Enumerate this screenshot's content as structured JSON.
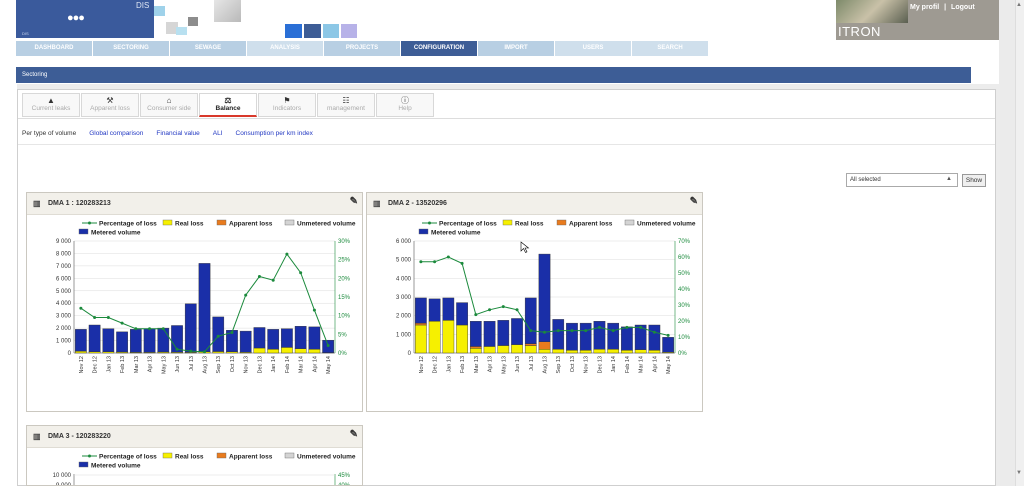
{
  "header": {
    "logo_text": "DIS",
    "logo_drops": "●●●",
    "logo_small": "DIS",
    "brand": "ITRON",
    "my_profil": "My profil",
    "separator": "|",
    "logout": "Logout"
  },
  "nav": [
    {
      "label": "DASHBOARD",
      "w": 76,
      "cls": ""
    },
    {
      "label": "SECTORING",
      "w": 76,
      "cls": ""
    },
    {
      "label": "SEWAGE",
      "w": 76,
      "cls": ""
    },
    {
      "label": "ANALYSIS",
      "w": 76,
      "cls": "light"
    },
    {
      "label": "PROJECTS",
      "w": 76,
      "cls": ""
    },
    {
      "label": "CONFIGURATION",
      "w": 76,
      "cls": "active"
    },
    {
      "label": "IMPORT",
      "w": 76,
      "cls": ""
    },
    {
      "label": "USERS",
      "w": 76,
      "cls": "light"
    },
    {
      "label": "SEARCH",
      "w": 76,
      "cls": "light"
    }
  ],
  "section_title": "Sectoring",
  "subtabs": [
    {
      "label": "Current leaks",
      "icon": "▲",
      "icon_name": "drop-icon",
      "active": false
    },
    {
      "label": "Apparent loss",
      "icon": "⚒",
      "icon_name": "hammer-icon",
      "active": false
    },
    {
      "label": "Consumer side",
      "icon": "⌂",
      "icon_name": "house-icon",
      "active": false
    },
    {
      "label": "Balance",
      "icon": "⚖",
      "icon_name": "balance-icon",
      "active": true
    },
    {
      "label": "Indicators",
      "icon": "⚑",
      "icon_name": "flag-icon",
      "active": false
    },
    {
      "label": "management",
      "icon": "☷",
      "icon_name": "hierarchy-icon",
      "active": false
    },
    {
      "label": "Help",
      "icon": "ⓘ",
      "icon_name": "help-icon",
      "active": false
    }
  ],
  "views": [
    {
      "label": "Per type of volume",
      "active": true
    },
    {
      "label": "Global comparison",
      "active": false
    },
    {
      "label": "Financial value",
      "active": false
    },
    {
      "label": "ALI",
      "active": false
    },
    {
      "label": "Consumption per km index",
      "active": false
    }
  ],
  "filter": {
    "value": "All selected",
    "arrow": "▲",
    "show_label": "Show"
  },
  "legend": {
    "pct": "Percentage of loss",
    "real": "Real loss",
    "apparent": "Apparent loss",
    "unmetered": "Unmetered volume",
    "metered": "Metered volume"
  },
  "colors": {
    "metered": "#1a2fa8",
    "real": "#f6f000",
    "apparent": "#e87b1e",
    "unmetered": "#d4d4d4",
    "pct_line": "#1b8a3c",
    "header": "#3d5d96"
  },
  "chart_data": [
    {
      "type": "bar",
      "title": "DMA 1 : 120283213",
      "categories": [
        "Nov 12",
        "Dec 12",
        "Jan 13",
        "Feb 13",
        "Mar 13",
        "Apr 13",
        "May 13",
        "Jun 13",
        "Jul 13",
        "Aug 13",
        "Sep 13",
        "Oct 13",
        "Nov 13",
        "Dec 13",
        "Jan 14",
        "Feb 14",
        "Mar 14",
        "Apr 14",
        "May 14"
      ],
      "ylim": [
        0,
        9000
      ],
      "yticks": [
        "0",
        "1 000",
        "2 000",
        "3 000",
        "4 000",
        "5 000",
        "6 000",
        "7 000",
        "8 000",
        "9 000"
      ],
      "y2lim": [
        0,
        30
      ],
      "y2ticks": [
        "0%",
        "5%",
        "10%",
        "15%",
        "20%",
        "25%",
        "30%"
      ],
      "series": [
        {
          "name": "Real loss",
          "values": [
            150,
            100,
            100,
            80,
            50,
            50,
            80,
            60,
            50,
            100,
            120,
            100,
            60,
            400,
            300,
            450,
            350,
            300,
            30
          ]
        },
        {
          "name": "Apparent loss",
          "values": [
            0,
            0,
            0,
            0,
            0,
            0,
            0,
            0,
            0,
            0,
            0,
            0,
            0,
            0,
            0,
            0,
            0,
            0,
            0
          ]
        },
        {
          "name": "Unmetered volume",
          "values": [
            0,
            0,
            0,
            0,
            0,
            0,
            0,
            0,
            0,
            0,
            0,
            0,
            0,
            0,
            0,
            0,
            0,
            0,
            0
          ]
        },
        {
          "name": "Metered volume",
          "values": [
            1750,
            2150,
            1850,
            1620,
            1850,
            1900,
            1920,
            2150,
            3900,
            7100,
            2780,
            1730,
            1700,
            1650,
            1600,
            1500,
            1800,
            1800,
            1000
          ]
        },
        {
          "name": "Percentage of loss",
          "values": [
            12,
            9.5,
            9.5,
            8,
            6.5,
            6.5,
            6.5,
            1,
            0.5,
            0.3,
            4.5,
            5.5,
            15.5,
            20.5,
            19.5,
            26.5,
            21.5,
            11.5,
            2
          ]
        }
      ]
    },
    {
      "type": "bar",
      "title": "DMA 2 - 13520296",
      "categories": [
        "Nov 12",
        "Dec 12",
        "Jan 13",
        "Feb 13",
        "Mar 13",
        "Apr 13",
        "May 13",
        "Jun 13",
        "Jul 13",
        "Aug 13",
        "Sep 13",
        "Oct 13",
        "Nov 13",
        "Dec 13",
        "Jan 14",
        "Feb 14",
        "Mar 14",
        "Apr 14",
        "May 14"
      ],
      "ylim": [
        0,
        6000
      ],
      "yticks": [
        "0",
        "1 000",
        "2 000",
        "3 000",
        "4 000",
        "5 000",
        "6 000"
      ],
      "y2lim": [
        0,
        70
      ],
      "y2ticks": [
        "0%",
        "10%",
        "20%",
        "30%",
        "40%",
        "50%",
        "60%",
        "70%"
      ],
      "series": [
        {
          "name": "Real loss",
          "values": [
            1500,
            1700,
            1750,
            1500,
            250,
            350,
            400,
            450,
            400,
            200,
            200,
            150,
            150,
            200,
            200,
            150,
            180,
            150,
            40
          ]
        },
        {
          "name": "Apparent loss",
          "values": [
            100,
            0,
            0,
            0,
            100,
            0,
            0,
            0,
            100,
            400,
            0,
            0,
            0,
            0,
            0,
            0,
            0,
            0,
            0
          ]
        },
        {
          "name": "Unmetered volume",
          "values": [
            0,
            0,
            0,
            0,
            0,
            0,
            0,
            0,
            0,
            0,
            0,
            0,
            0,
            0,
            0,
            0,
            0,
            0,
            0
          ]
        },
        {
          "name": "Metered volume",
          "values": [
            1350,
            1200,
            1200,
            1200,
            1350,
            1350,
            1350,
            1400,
            2450,
            4700,
            1600,
            1450,
            1450,
            1500,
            1400,
            1250,
            1320,
            1350,
            800
          ]
        },
        {
          "name": "Percentage of loss",
          "values": [
            57,
            57,
            60,
            56,
            24,
            27,
            29,
            27,
            14,
            13,
            14,
            14,
            14,
            16,
            14,
            16,
            16,
            13,
            11
          ]
        }
      ]
    },
    {
      "type": "bar",
      "title": "DMA 3 - 120283220",
      "categories": [],
      "ylim": [
        0,
        10000
      ],
      "yticks": [
        "10 000",
        "9 000"
      ],
      "y2lim": [
        0,
        45
      ],
      "y2ticks": [
        "45%",
        "40%"
      ],
      "series": []
    }
  ]
}
